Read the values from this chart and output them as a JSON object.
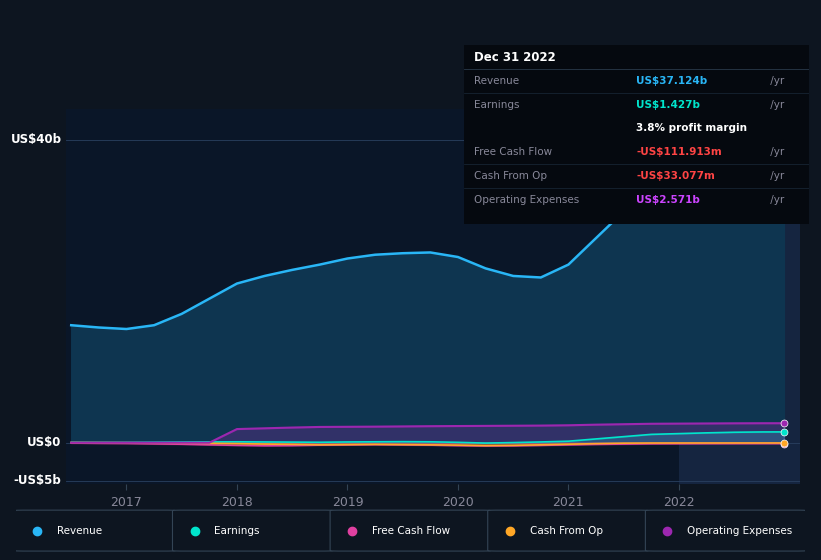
{
  "bg_color": "#0d1520",
  "plot_bg": "#0a1628",
  "text_color": "#888899",
  "years": [
    2016.5,
    2016.75,
    2017.0,
    2017.25,
    2017.5,
    2017.75,
    2018.0,
    2018.25,
    2018.5,
    2018.75,
    2019.0,
    2019.25,
    2019.5,
    2019.75,
    2020.0,
    2020.25,
    2020.5,
    2020.75,
    2021.0,
    2021.25,
    2021.5,
    2021.75,
    2022.0,
    2022.25,
    2022.5,
    2022.75,
    2022.95
  ],
  "revenue": [
    15.5,
    15.2,
    15.0,
    15.5,
    17.0,
    19.0,
    21.0,
    22.0,
    22.8,
    23.5,
    24.3,
    24.8,
    25.0,
    25.1,
    24.5,
    23.0,
    22.0,
    21.8,
    23.5,
    27.0,
    30.5,
    33.5,
    35.5,
    36.2,
    36.8,
    37.0,
    37.124
  ],
  "earnings": [
    0.05,
    0.04,
    0.04,
    0.06,
    0.08,
    0.1,
    0.12,
    0.1,
    0.08,
    0.06,
    0.1,
    0.12,
    0.14,
    0.12,
    0.05,
    -0.05,
    0.02,
    0.1,
    0.2,
    0.5,
    0.8,
    1.1,
    1.2,
    1.3,
    1.38,
    1.42,
    1.427
  ],
  "free_cash_flow": [
    -0.05,
    -0.08,
    -0.1,
    -0.15,
    -0.2,
    -0.28,
    -0.35,
    -0.4,
    -0.38,
    -0.32,
    -0.28,
    -0.25,
    -0.28,
    -0.32,
    -0.38,
    -0.42,
    -0.4,
    -0.35,
    -0.28,
    -0.22,
    -0.18,
    -0.14,
    -0.13,
    -0.12,
    -0.115,
    -0.112,
    -0.112
  ],
  "cash_from_op": [
    0.02,
    0.01,
    0.0,
    -0.02,
    -0.05,
    -0.08,
    -0.12,
    -0.18,
    -0.22,
    -0.28,
    -0.25,
    -0.22,
    -0.25,
    -0.28,
    -0.32,
    -0.38,
    -0.35,
    -0.28,
    -0.2,
    -0.12,
    -0.06,
    -0.04,
    -0.038,
    -0.036,
    -0.034,
    -0.033,
    -0.033
  ],
  "operating_expenses": [
    0.0,
    0.0,
    0.0,
    0.0,
    0.0,
    0.0,
    1.8,
    1.9,
    2.0,
    2.08,
    2.1,
    2.12,
    2.15,
    2.18,
    2.2,
    2.22,
    2.24,
    2.26,
    2.3,
    2.38,
    2.44,
    2.5,
    2.52,
    2.54,
    2.56,
    2.57,
    2.571
  ],
  "revenue_color": "#29b6f6",
  "revenue_fill_color": "#0d3a5c",
  "earnings_color": "#00e5cc",
  "free_cash_flow_color": "#e040a0",
  "cash_from_op_color": "#ffa726",
  "operating_expenses_color": "#9c27b0",
  "ylim": [
    -5.5,
    44
  ],
  "ytick_vals": [
    -5,
    0,
    40
  ],
  "ytick_labels": [
    "-US$5b",
    "US$0",
    "US$40b"
  ],
  "xtick_vals": [
    2017,
    2018,
    2019,
    2020,
    2021,
    2022
  ],
  "highlight_x_start": 2022.0,
  "highlight_x_end": 2023.1,
  "highlight_color": "#152540",
  "xmin": 2016.45,
  "xmax": 2023.1,
  "info_box": {
    "date": "Dec 31 2022",
    "rows": [
      {
        "label": "Revenue",
        "value": "US$37.124b",
        "value_color": "#29b6f6",
        "suffix": " /yr"
      },
      {
        "label": "Earnings",
        "value": "US$1.427b",
        "value_color": "#00e5cc",
        "suffix": " /yr"
      },
      {
        "label": "",
        "value": "3.8% profit margin",
        "value_color": "#ffffff",
        "suffix": ""
      },
      {
        "label": "Free Cash Flow",
        "value": "-US$111.913m",
        "value_color": "#ff4444",
        "suffix": " /yr"
      },
      {
        "label": "Cash From Op",
        "value": "-US$33.077m",
        "value_color": "#ff4444",
        "suffix": " /yr"
      },
      {
        "label": "Operating Expenses",
        "value": "US$2.571b",
        "value_color": "#cc44ff",
        "suffix": " /yr"
      }
    ]
  },
  "legend_items": [
    {
      "label": "Revenue",
      "color": "#29b6f6"
    },
    {
      "label": "Earnings",
      "color": "#00e5cc"
    },
    {
      "label": "Free Cash Flow",
      "color": "#e040a0"
    },
    {
      "label": "Cash From Op",
      "color": "#ffa726"
    },
    {
      "label": "Operating Expenses",
      "color": "#9c27b0"
    }
  ]
}
